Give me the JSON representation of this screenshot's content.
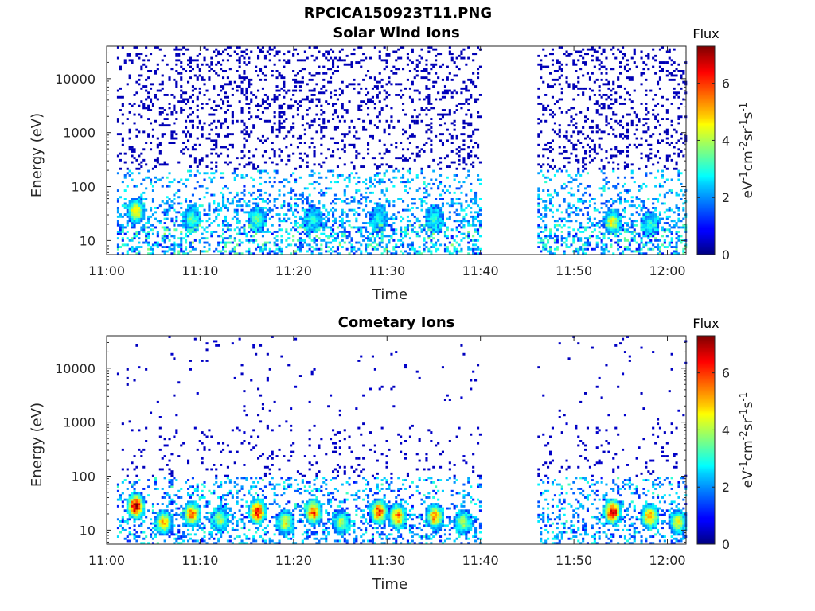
{
  "figure": {
    "title": "RPCICA150923T11.PNG"
  },
  "chart_data": [
    {
      "type": "heatmap",
      "title": "Solar Wind Ions",
      "xlabel": "Time",
      "ylabel": "Energy (eV)",
      "x_ticks": [
        "11:00",
        "11:10",
        "11:20",
        "11:30",
        "11:40",
        "11:50",
        "12:00"
      ],
      "y_ticks": [
        "10",
        "100",
        "1000",
        "10000"
      ],
      "y_scale": "log",
      "x_range": [
        "11:00",
        "12:02"
      ],
      "y_range": [
        5.5,
        40000
      ],
      "colorbar": {
        "title": "Flux",
        "label": "eV-1cm-2sr-1s-1",
        "ticks": [
          0,
          2,
          4,
          6
        ],
        "range": [
          0,
          7.3
        ],
        "colormap": "jet"
      },
      "data_gaps": [
        [
          "11:40",
          "11:46"
        ]
      ],
      "flux_hotspots": [
        {
          "time": "11:03",
          "energy": 35,
          "flux": 5
        },
        {
          "time": "11:09",
          "energy": 25,
          "flux": 3.5
        },
        {
          "time": "11:16",
          "energy": 25,
          "flux": 3.5
        },
        {
          "time": "11:22",
          "energy": 25,
          "flux": 3
        },
        {
          "time": "11:29",
          "energy": 25,
          "flux": 3
        },
        {
          "time": "11:35",
          "energy": 25,
          "flux": 3
        },
        {
          "time": "11:54",
          "energy": 22,
          "flux": 4.5
        },
        {
          "time": "11:58",
          "energy": 20,
          "flux": 3
        }
      ]
    },
    {
      "type": "heatmap",
      "title": "Cometary Ions",
      "xlabel": "Time",
      "ylabel": "Energy (eV)",
      "x_ticks": [
        "11:00",
        "11:10",
        "11:20",
        "11:30",
        "11:40",
        "11:50",
        "12:00"
      ],
      "y_ticks": [
        "10",
        "100",
        "1000",
        "10000"
      ],
      "y_scale": "log",
      "x_range": [
        "11:00",
        "12:02"
      ],
      "y_range": [
        5.5,
        40000
      ],
      "colorbar": {
        "title": "Flux",
        "label": "eV-1cm-2sr-1s-1",
        "ticks": [
          0,
          2,
          4,
          6
        ],
        "range": [
          0,
          7.3
        ],
        "colormap": "jet"
      },
      "data_gaps": [
        [
          "11:40",
          "11:46"
        ]
      ],
      "flux_hotspots": [
        {
          "time": "11:03",
          "energy": 28,
          "flux": 7
        },
        {
          "time": "11:06",
          "energy": 14,
          "flux": 5
        },
        {
          "time": "11:09",
          "energy": 20,
          "flux": 5.5
        },
        {
          "time": "11:12",
          "energy": 16,
          "flux": 4
        },
        {
          "time": "11:16",
          "energy": 22,
          "flux": 6.5
        },
        {
          "time": "11:19",
          "energy": 14,
          "flux": 4.5
        },
        {
          "time": "11:22",
          "energy": 22,
          "flux": 6
        },
        {
          "time": "11:25",
          "energy": 14,
          "flux": 4
        },
        {
          "time": "11:29",
          "energy": 22,
          "flux": 6
        },
        {
          "time": "11:31",
          "energy": 18,
          "flux": 5.5
        },
        {
          "time": "11:35",
          "energy": 18,
          "flux": 5.5
        },
        {
          "time": "11:38",
          "energy": 14,
          "flux": 4
        },
        {
          "time": "11:54",
          "energy": 22,
          "flux": 6.8
        },
        {
          "time": "11:58",
          "energy": 18,
          "flux": 5.5
        },
        {
          "time": "12:01",
          "energy": 14,
          "flux": 4.5
        }
      ]
    }
  ]
}
